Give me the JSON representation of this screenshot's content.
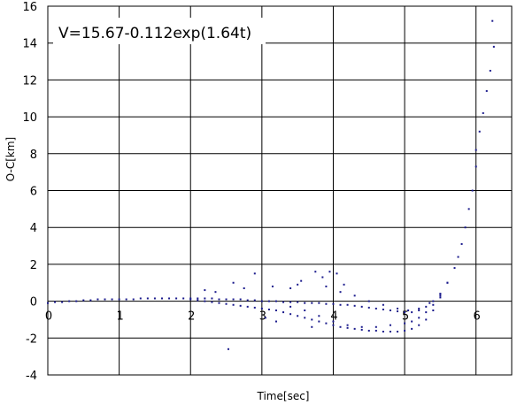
{
  "chart_data": {
    "type": "scatter",
    "title": "",
    "annotation": "V=15.67-0.112exp(1.64t)",
    "xlabel": "Time[sec]",
    "ylabel": "O-C[km]",
    "xlim": [
      0,
      6.5
    ],
    "ylim": [
      -4,
      16
    ],
    "x_ticks": [
      "0",
      "1",
      "2",
      "3",
      "4",
      "5",
      "6"
    ],
    "y_ticks": [
      "-4",
      "-2",
      "0",
      "2",
      "4",
      "6",
      "8",
      "10",
      "12",
      "14",
      "16"
    ],
    "grid": true,
    "legend": "none",
    "marker_color": "#1a1a8c",
    "series": [
      {
        "x": [
          0.0,
          0.1,
          0.2,
          0.3,
          0.4,
          0.5,
          0.6,
          0.7,
          0.8,
          0.9,
          1.0,
          1.1,
          1.2,
          1.3,
          1.4,
          1.5,
          1.6,
          1.7,
          1.8,
          1.9,
          2.0,
          2.1,
          2.2,
          2.3,
          2.4,
          2.5,
          2.6,
          2.7,
          2.8,
          2.9,
          3.0,
          3.1,
          3.2,
          3.3,
          3.4,
          3.5,
          3.6,
          3.7,
          3.8,
          3.9,
          4.0,
          4.1,
          4.2,
          4.3,
          4.4,
          4.5,
          4.6,
          4.7,
          4.8,
          4.9,
          5.0,
          5.1,
          5.2,
          5.3,
          5.4,
          5.5,
          5.6,
          5.7,
          5.75,
          5.8,
          5.85,
          5.9,
          5.95,
          6.0
        ],
        "y": [
          -0.1,
          -0.05,
          -0.05,
          0.0,
          0.0,
          0.05,
          0.05,
          0.1,
          0.1,
          0.1,
          0.1,
          0.1,
          0.1,
          0.15,
          0.15,
          0.15,
          0.15,
          0.15,
          0.15,
          0.15,
          0.15,
          0.15,
          0.15,
          0.15,
          0.1,
          0.1,
          0.1,
          0.1,
          0.05,
          0.05,
          0.0,
          0.0,
          0.0,
          -0.05,
          -0.05,
          -0.05,
          -0.1,
          -0.1,
          -0.1,
          -0.15,
          -0.15,
          -0.2,
          -0.2,
          -0.25,
          -0.3,
          -0.35,
          -0.4,
          -0.45,
          -0.5,
          -0.55,
          -0.6,
          -0.6,
          -0.5,
          -0.3,
          0.0,
          0.4,
          1.0,
          1.8,
          2.4,
          3.1,
          4.0,
          5.0,
          6.0,
          7.3
        ]
      },
      {
        "x": [
          2.0,
          2.1,
          2.2,
          2.3,
          2.4,
          2.5,
          2.6,
          2.7,
          2.8,
          2.9,
          3.0,
          3.1,
          3.2,
          3.3,
          3.4,
          3.5,
          3.6,
          3.7,
          3.8,
          3.9,
          4.0,
          4.1,
          4.2,
          4.3,
          4.4,
          4.5,
          4.6,
          4.7,
          4.8,
          4.9,
          5.0,
          5.1,
          5.2,
          5.3,
          5.4,
          5.5,
          5.6
        ],
        "y": [
          0.1,
          0.05,
          0.0,
          -0.05,
          -0.1,
          -0.15,
          -0.2,
          -0.25,
          -0.3,
          -0.35,
          -0.4,
          -0.45,
          -0.5,
          -0.6,
          -0.7,
          -0.8,
          -0.9,
          -1.0,
          -1.1,
          -1.2,
          -1.3,
          -1.4,
          -1.45,
          -1.5,
          -1.55,
          -1.6,
          -1.6,
          -1.65,
          -1.65,
          -1.65,
          -1.6,
          -1.5,
          -1.3,
          -1.0,
          -0.5,
          0.2,
          1.0
        ]
      },
      {
        "x": [
          3.4,
          3.6,
          3.8,
          4.0,
          4.2,
          4.4,
          4.6,
          4.8,
          5.0,
          5.1,
          5.2,
          5.3,
          5.4,
          5.5
        ],
        "y": [
          -0.3,
          -0.5,
          -0.8,
          -1.1,
          -1.3,
          -1.4,
          -1.4,
          -1.3,
          -1.2,
          -1.1,
          -0.9,
          -0.6,
          -0.2,
          0.3
        ]
      },
      {
        "x": [
          3.9,
          4.1,
          4.3,
          4.5,
          4.7,
          4.9,
          5.05,
          5.2,
          5.35,
          5.5
        ],
        "y": [
          0.8,
          0.5,
          0.3,
          0.0,
          -0.2,
          -0.4,
          -0.5,
          -0.4,
          -0.1,
          0.4
        ]
      },
      {
        "x": [
          6.0,
          6.05,
          6.1,
          6.15,
          6.2,
          6.25
        ],
        "y": [
          8.2,
          9.2,
          10.2,
          11.4,
          12.5,
          13.8
        ]
      },
      {
        "x": [
          2.53,
          2.2,
          2.6,
          2.9,
          3.05,
          3.2,
          3.4,
          3.55,
          3.7,
          3.85,
          3.95,
          4.05,
          4.15,
          2.35,
          2.75,
          3.15,
          3.5,
          3.75,
          6.23
        ],
        "y": [
          -2.6,
          0.6,
          1.0,
          1.5,
          -0.9,
          -1.1,
          0.7,
          1.1,
          -1.4,
          1.3,
          1.6,
          1.5,
          0.9,
          0.5,
          0.7,
          0.8,
          0.9,
          1.6,
          15.2
        ]
      }
    ]
  }
}
